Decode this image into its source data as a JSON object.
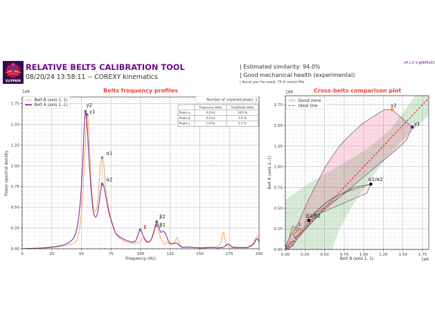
{
  "header": {
    "logo_text": "KLIPPAIN",
    "title": "RELATIVE BELTS CALIBRATION TOOL",
    "subtitle": "08/20/24 13:58:11 -- COREXY kinematics",
    "similarity": "| Estimated similarity: 94.0%",
    "health": "| Good mechanical health (experimental)",
    "accel": "| Accel per Hz used: 75.0 mm/s²/Hz",
    "version": "v4.1.0-1-g66f5e32"
  },
  "colors": {
    "purple": "#70088C",
    "orange": "#FF8D32",
    "plot_title": "#F24130",
    "red_pink": "#F2055C",
    "good_zone": "#008000",
    "ideal_line": "#E8202A"
  },
  "chart_data": [
    {
      "type": "line",
      "title": "Belts frequency profiles",
      "xlabel": "Frequency (Hz)",
      "ylabel": "Power spectral density",
      "y_offset_label": "1e6",
      "xlim": [
        0,
        200
      ],
      "ylim": [
        0,
        1.83
      ],
      "grid": true,
      "legend": "top-left",
      "xticks": [
        0,
        25,
        50,
        75,
        100,
        125,
        150,
        175,
        200
      ],
      "xtick_labels": [
        "0",
        "25",
        "50",
        "75",
        "100",
        "125",
        "150",
        "175",
        "200"
      ],
      "yticks": [
        0,
        0.25,
        0.5,
        0.75,
        1.0,
        1.25,
        1.5,
        1.75
      ],
      "ytick_labels": [
        "0.00",
        "0.25",
        "0.50",
        "0.75",
        "1.00",
        "1.25",
        "1.50",
        "1.75"
      ],
      "series": [
        {
          "name": "Belt B (axis 1, 1)",
          "color": "#FF8D32",
          "x": [
            0,
            10,
            20,
            25,
            30,
            35,
            40,
            45,
            47,
            49,
            51,
            52,
            53,
            54,
            55,
            56,
            57,
            58,
            59,
            60,
            61,
            62,
            63,
            64,
            65,
            66,
            67.5,
            69,
            70,
            72,
            75,
            78,
            80,
            85,
            90,
            95,
            99,
            101,
            103,
            105,
            107,
            110,
            112,
            113.5,
            115,
            117,
            118,
            120,
            122,
            125,
            128,
            130,
            131,
            133,
            135,
            140,
            150,
            160,
            165,
            168,
            170,
            172,
            175,
            180,
            190,
            195,
            198,
            200
          ],
          "y": [
            0,
            0.004,
            0.01,
            0.015,
            0.025,
            0.035,
            0.05,
            0.08,
            0.15,
            0.3,
            0.6,
            0.9,
            1.2,
            1.45,
            1.62,
            1.5,
            1.2,
            0.9,
            0.65,
            0.5,
            0.46,
            0.45,
            0.5,
            0.62,
            0.8,
            1.0,
            1.1,
            1.0,
            0.82,
            0.58,
            0.36,
            0.22,
            0.16,
            0.1,
            0.07,
            0.065,
            0.08,
            0.11,
            0.13,
            0.1,
            0.08,
            0.14,
            0.24,
            0.28,
            0.22,
            0.12,
            0.1,
            0.05,
            0.08,
            0.05,
            0.07,
            0.12,
            0.13,
            0.06,
            0.02,
            0.02,
            0.01,
            0.02,
            0.03,
            0.08,
            0.2,
            0.06,
            0.02,
            0.01,
            0.02,
            0.06,
            0.15,
            0.1
          ]
        },
        {
          "name": "Belt A (axis 1,-1)",
          "color": "#70088C",
          "x": [
            0,
            10,
            20,
            25,
            30,
            35,
            40,
            43,
            45,
            47,
            49,
            50,
            51,
            52,
            53,
            53.5,
            54,
            55,
            56,
            57,
            58,
            59,
            60,
            61,
            62,
            63,
            64,
            65,
            66.5,
            67.5,
            69,
            71,
            73,
            75,
            78,
            80,
            85,
            90,
            93,
            96,
            99.5,
            102,
            104,
            106,
            108,
            110,
            112,
            113.5,
            115,
            117,
            119,
            121,
            124,
            127,
            130,
            132,
            135,
            140,
            150,
            160,
            165,
            170,
            173,
            175,
            178,
            185,
            190,
            195,
            198,
            200
          ],
          "y": [
            0,
            0.005,
            0.012,
            0.02,
            0.03,
            0.045,
            0.08,
            0.12,
            0.18,
            0.3,
            0.55,
            0.75,
            1.0,
            1.35,
            1.6,
            1.66,
            1.62,
            1.45,
            1.2,
            0.95,
            0.75,
            0.58,
            0.45,
            0.4,
            0.38,
            0.4,
            0.46,
            0.56,
            0.72,
            0.78,
            0.75,
            0.6,
            0.45,
            0.35,
            0.22,
            0.17,
            0.12,
            0.09,
            0.08,
            0.1,
            0.23,
            0.16,
            0.1,
            0.08,
            0.09,
            0.15,
            0.25,
            0.33,
            0.28,
            0.2,
            0.21,
            0.18,
            0.08,
            0.06,
            0.07,
            0.05,
            0.02,
            0.02,
            0.01,
            0.015,
            0.01,
            0.02,
            0.05,
            0.05,
            0.02,
            0.015,
            0.015,
            0.05,
            0.12,
            0.08
          ]
        }
      ],
      "peaks": [
        {
          "label": "γ1",
          "series": 0,
          "x": 55,
          "y": 1.62
        },
        {
          "label": "γ2",
          "series": 1,
          "x": 53.5,
          "y": 1.66
        },
        {
          "label": "α1",
          "series": 0,
          "x": 67.5,
          "y": 1.1
        },
        {
          "label": "α2",
          "series": 1,
          "x": 67.5,
          "y": 0.78
        },
        {
          "label": "β1",
          "series": 0,
          "x": 113.5,
          "y": 0.28
        },
        {
          "label": "β2",
          "series": 1,
          "x": 113.5,
          "y": 0.33
        }
      ],
      "peak_pairs": [
        [
          0,
          1
        ],
        [
          2,
          3
        ],
        [
          4,
          5
        ]
      ],
      "unpaired_peaks": [
        {
          "label": "1",
          "series": 1,
          "x": 99.5,
          "y": 0.23
        }
      ],
      "unpaired_count_label": "Number of unpaired peaks: 1",
      "table": {
        "columns": [
          "",
          "Frequency delta",
          "Amplitude delta"
        ],
        "rows": [
          [
            "Peaks α",
            "0.0 Hz",
            "18.6 %"
          ],
          [
            "Peaks β",
            "0.0 Hz",
            "2.9 %"
          ],
          [
            "Peaks γ",
            "1.6 Hz",
            "2.5 %"
          ]
        ]
      }
    },
    {
      "type": "scatter",
      "title": "Cross-belts comparison plot",
      "xlabel": "Belt B (axis 1, 1)",
      "ylabel": "Belt A (axis 1,-1)",
      "x_offset_label": "1e6",
      "y_offset_label": "1e6",
      "xlim": [
        0,
        1.83
      ],
      "ylim": [
        0,
        1.86
      ],
      "grid": true,
      "legend": "top-left",
      "xticks": [
        0,
        0.25,
        0.5,
        0.75,
        1.0,
        1.25,
        1.5,
        1.75
      ],
      "xtick_labels": [
        "0.00",
        "0.25",
        "0.50",
        "0.75",
        "1.00",
        "1.25",
        "1.50",
        "1.75"
      ],
      "yticks": [
        0,
        0.25,
        0.5,
        0.75,
        1.0,
        1.25,
        1.5,
        1.75
      ],
      "ytick_labels": [
        "0.00",
        "0.25",
        "0.50",
        "0.75",
        "1.00",
        "1.25",
        "1.50",
        "1.75"
      ],
      "legend_entries": [
        {
          "name": "Good zone",
          "kind": "patch",
          "color": "#008000"
        },
        {
          "name": "Ideal line",
          "kind": "dashed-line",
          "color": "#E8202A"
        }
      ],
      "good_zone": {
        "upper": [
          [
            0,
            0.6
          ],
          [
            0.3,
            0.8
          ],
          [
            0.7,
            1.02
          ],
          [
            1.05,
            1.22
          ],
          [
            1.35,
            1.46
          ],
          [
            1.66,
            1.86
          ]
        ],
        "lower": [
          [
            0.6,
            0
          ],
          [
            0.69,
            0.25
          ],
          [
            0.89,
            0.58
          ],
          [
            1.2,
            1.0
          ],
          [
            1.5,
            1.33
          ],
          [
            1.83,
            1.62
          ]
        ]
      },
      "ideal_line": [
        [
          0,
          0
        ],
        [
          1.86,
          1.86
        ]
      ],
      "hulls": [
        [
          [
            0,
            0
          ],
          [
            0.03,
            0.1
          ],
          [
            0.1,
            0.22
          ],
          [
            0.16,
            0.31
          ],
          [
            0.27,
            0.55
          ],
          [
            0.37,
            0.74
          ],
          [
            0.51,
            1.0
          ],
          [
            0.69,
            1.25
          ],
          [
            0.8,
            1.36
          ],
          [
            0.98,
            1.52
          ],
          [
            1.26,
            1.69
          ],
          [
            1.36,
            1.69
          ],
          [
            1.62,
            1.48
          ],
          [
            1.55,
            1.33
          ],
          [
            1.47,
            1.25
          ],
          [
            0.45,
            0.44
          ],
          [
            0.2,
            0.18
          ],
          [
            0.06,
            0.02
          ]
        ],
        [
          [
            0.3,
            0.38
          ],
          [
            0.87,
            0.75
          ],
          [
            1.09,
            0.79
          ],
          [
            1.04,
            0.68
          ],
          [
            0.45,
            0.44
          ]
        ],
        [
          [
            0.12,
            0.14
          ],
          [
            0.22,
            0.24
          ],
          [
            0.3,
            0.35
          ],
          [
            0.36,
            0.38
          ],
          [
            0.18,
            0.17
          ]
        ],
        [
          [
            0.04,
            0
          ],
          [
            0.15,
            0.12
          ],
          [
            0.1,
            0.18
          ],
          [
            0.2,
            0.25
          ],
          [
            0.09,
            0.28
          ],
          [
            0.05,
            0.14
          ],
          [
            0,
            0.03
          ]
        ],
        [
          [
            0,
            0
          ],
          [
            0.09,
            0.04
          ],
          [
            0.13,
            0.1
          ],
          [
            0.06,
            0.09
          ]
        ]
      ],
      "traces": [
        [
          [
            0.26,
            0.34
          ],
          [
            0.55,
            0.58
          ],
          [
            0.87,
            0.75
          ]
        ],
        [
          [
            0.24,
            0.32
          ],
          [
            0.6,
            0.62
          ],
          [
            1.09,
            0.79
          ]
        ]
      ],
      "points": [
        {
          "label": "γ1",
          "x": 1.62,
          "y": 1.48,
          "color": "#70088C",
          "label_color": "#222222"
        },
        {
          "label": "γ2",
          "x": 1.36,
          "y": 1.69,
          "color": "#FF8D32",
          "label_color": "#222222"
        },
        {
          "label": "α1/α2",
          "x": 1.09,
          "y": 0.79,
          "color": "#000000",
          "label_color": "#222222"
        },
        {
          "label": "β1/β2",
          "x": 0.3,
          "y": 0.35,
          "color": "#000000",
          "label_color": "#222222"
        },
        {
          "label": "1",
          "x": 0.15,
          "y": 0.23,
          "color": "#FF8D32",
          "label_color": "#F2055C"
        }
      ]
    }
  ]
}
